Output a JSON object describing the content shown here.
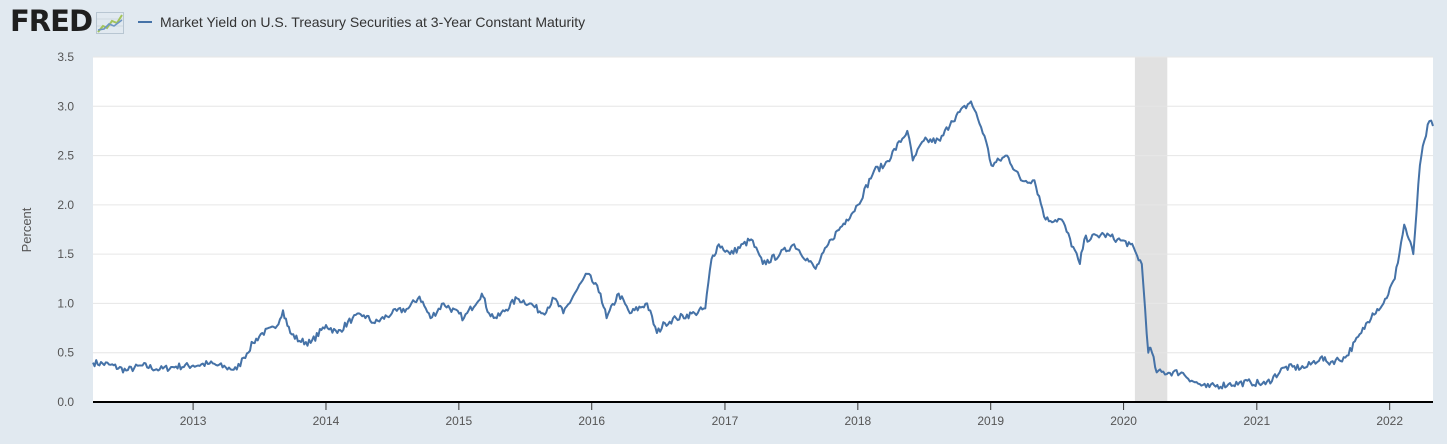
{
  "header": {
    "logo_text": "FRED",
    "series_title": "Market Yield on U.S. Treasury Securities at 3-Year Constant Maturity"
  },
  "colors": {
    "series": "#4572a7",
    "background": "#e1e9f0",
    "plot_background": "#ffffff",
    "recession_band": "#e1e1e1",
    "gridline": "#e6e6e6"
  },
  "chart_data": {
    "type": "line",
    "title": "Market Yield on U.S. Treasury Securities at 3-Year Constant Maturity",
    "xlabel": "",
    "ylabel": "Percent",
    "ylim": [
      0,
      3.5
    ],
    "xlim": [
      "2012-04-01",
      "2022-04-30"
    ],
    "grid": true,
    "legend": "top-left",
    "yticks": [
      "0.0",
      "0.5",
      "1.0",
      "1.5",
      "2.0",
      "2.5",
      "3.0",
      "3.5"
    ],
    "xticks": [
      {
        "label": "2013",
        "date": "2013-01-01"
      },
      {
        "label": "2014",
        "date": "2014-01-01"
      },
      {
        "label": "2015",
        "date": "2015-01-01"
      },
      {
        "label": "2016",
        "date": "2016-01-01"
      },
      {
        "label": "2017",
        "date": "2017-01-01"
      },
      {
        "label": "2018",
        "date": "2018-01-01"
      },
      {
        "label": "2019",
        "date": "2019-01-01"
      },
      {
        "label": "2020",
        "date": "2020-01-01"
      },
      {
        "label": "2021",
        "date": "2021-01-01"
      },
      {
        "label": "2022",
        "date": "2022-01-01"
      }
    ],
    "recession_shading": {
      "start": "2020-02-01",
      "end": "2020-04-30"
    },
    "series": [
      {
        "name": "Market Yield on U.S. Treasury Securities at 3-Year Constant Maturity",
        "points": [
          [
            "2012-04-01",
            0.4
          ],
          [
            "2012-05-15",
            0.38
          ],
          [
            "2012-07-01",
            0.32
          ],
          [
            "2012-08-15",
            0.37
          ],
          [
            "2012-10-01",
            0.33
          ],
          [
            "2012-11-15",
            0.36
          ],
          [
            "2013-01-01",
            0.37
          ],
          [
            "2013-02-15",
            0.39
          ],
          [
            "2013-04-01",
            0.35
          ],
          [
            "2013-05-01",
            0.33
          ],
          [
            "2013-05-20",
            0.45
          ],
          [
            "2013-06-15",
            0.6
          ],
          [
            "2013-07-10",
            0.7
          ],
          [
            "2013-08-15",
            0.75
          ],
          [
            "2013-09-05",
            0.93
          ],
          [
            "2013-09-25",
            0.7
          ],
          [
            "2013-10-20",
            0.62
          ],
          [
            "2013-11-20",
            0.6
          ],
          [
            "2014-01-01",
            0.78
          ],
          [
            "2014-02-01",
            0.7
          ],
          [
            "2014-03-15",
            0.85
          ],
          [
            "2014-04-15",
            0.88
          ],
          [
            "2014-05-15",
            0.8
          ],
          [
            "2014-07-01",
            0.9
          ],
          [
            "2014-08-15",
            0.95
          ],
          [
            "2014-09-15",
            1.07
          ],
          [
            "2014-10-15",
            0.85
          ],
          [
            "2014-11-20",
            1.0
          ],
          [
            "2015-01-15",
            0.85
          ],
          [
            "2015-03-05",
            1.1
          ],
          [
            "2015-03-25",
            0.9
          ],
          [
            "2015-04-15",
            0.85
          ],
          [
            "2015-06-10",
            1.05
          ],
          [
            "2015-07-15",
            1.0
          ],
          [
            "2015-08-20",
            0.9
          ],
          [
            "2015-09-20",
            1.05
          ],
          [
            "2015-10-15",
            0.9
          ],
          [
            "2015-11-15",
            1.1
          ],
          [
            "2015-12-20",
            1.3
          ],
          [
            "2016-01-25",
            1.1
          ],
          [
            "2016-02-11",
            0.85
          ],
          [
            "2016-03-15",
            1.1
          ],
          [
            "2016-04-15",
            0.9
          ],
          [
            "2016-06-01",
            1.0
          ],
          [
            "2016-06-28",
            0.7
          ],
          [
            "2016-07-20",
            0.8
          ],
          [
            "2016-08-20",
            0.85
          ],
          [
            "2016-10-10",
            0.9
          ],
          [
            "2016-11-08",
            0.95
          ],
          [
            "2016-11-25",
            1.45
          ],
          [
            "2016-12-15",
            1.6
          ],
          [
            "2017-01-15",
            1.5
          ],
          [
            "2017-03-14",
            1.65
          ],
          [
            "2017-04-15",
            1.4
          ],
          [
            "2017-06-01",
            1.5
          ],
          [
            "2017-07-10",
            1.6
          ],
          [
            "2017-09-07",
            1.35
          ],
          [
            "2017-10-20",
            1.65
          ],
          [
            "2017-12-01",
            1.85
          ],
          [
            "2018-01-01",
            2.0
          ],
          [
            "2018-02-15",
            2.35
          ],
          [
            "2018-03-15",
            2.4
          ],
          [
            "2018-05-17",
            2.75
          ],
          [
            "2018-06-01",
            2.45
          ],
          [
            "2018-07-01",
            2.65
          ],
          [
            "2018-08-15",
            2.65
          ],
          [
            "2018-09-15",
            2.85
          ],
          [
            "2018-11-08",
            3.05
          ],
          [
            "2018-12-15",
            2.7
          ],
          [
            "2019-01-03",
            2.4
          ],
          [
            "2019-02-15",
            2.5
          ],
          [
            "2019-03-25",
            2.25
          ],
          [
            "2019-05-01",
            2.25
          ],
          [
            "2019-06-01",
            1.85
          ],
          [
            "2019-07-15",
            1.85
          ],
          [
            "2019-09-03",
            1.4
          ],
          [
            "2019-09-15",
            1.65
          ],
          [
            "2019-11-08",
            1.7
          ],
          [
            "2019-12-15",
            1.65
          ],
          [
            "2020-01-20",
            1.6
          ],
          [
            "2020-02-20",
            1.4
          ],
          [
            "2020-03-09",
            0.5
          ],
          [
            "2020-03-15",
            0.55
          ],
          [
            "2020-04-01",
            0.3
          ],
          [
            "2020-06-08",
            0.3
          ],
          [
            "2020-07-15",
            0.2
          ],
          [
            "2020-08-15",
            0.15
          ],
          [
            "2020-10-15",
            0.18
          ],
          [
            "2020-12-15",
            0.2
          ],
          [
            "2021-01-25",
            0.18
          ],
          [
            "2021-03-18",
            0.35
          ],
          [
            "2021-05-15",
            0.35
          ],
          [
            "2021-06-25",
            0.45
          ],
          [
            "2021-07-15",
            0.4
          ],
          [
            "2021-09-01",
            0.45
          ],
          [
            "2021-10-15",
            0.7
          ],
          [
            "2021-11-15",
            0.9
          ],
          [
            "2021-12-15",
            1.0
          ],
          [
            "2022-01-15",
            1.25
          ],
          [
            "2022-02-10",
            1.8
          ],
          [
            "2022-03-07",
            1.5
          ],
          [
            "2022-03-25",
            2.4
          ],
          [
            "2022-04-06",
            2.65
          ],
          [
            "2022-04-20",
            2.85
          ],
          [
            "2022-04-30",
            2.8
          ]
        ]
      }
    ]
  }
}
